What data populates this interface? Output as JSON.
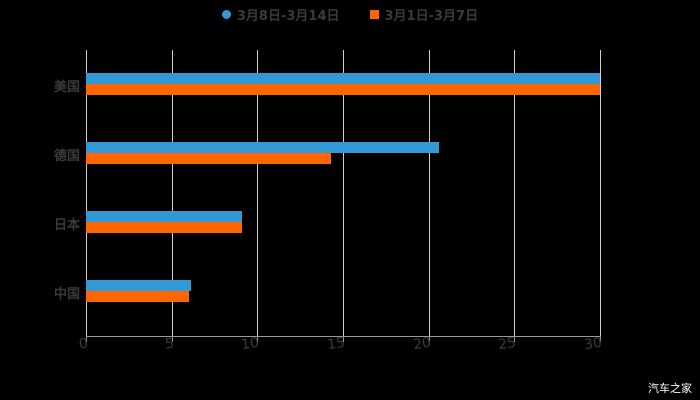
{
  "legend": [
    {
      "label": "3月8日-3月14日",
      "color": "#3399d6",
      "marker": "circle"
    },
    {
      "label": "3月1日-3月7日",
      "color": "#ff6600",
      "marker": "square"
    }
  ],
  "watermark": "汽车之家",
  "chart_data": {
    "type": "bar",
    "orientation": "horizontal",
    "title": "",
    "xlabel": "",
    "ylabel": "",
    "categories": [
      "美国",
      "德国",
      "日本",
      "中国"
    ],
    "series": [
      {
        "name": "3月8日-3月14日",
        "color": "#3399d6",
        "values": [
          30.0,
          20.6,
          9.1,
          6.1
        ]
      },
      {
        "name": "3月1日-3月7日",
        "color": "#ff6600",
        "values": [
          30.0,
          14.3,
          9.1,
          6.0
        ]
      }
    ],
    "xlim": [
      0,
      30
    ],
    "xticks": [
      "0",
      "5",
      "10",
      "15",
      "20",
      "25",
      "30"
    ],
    "grid": true,
    "legend_position": "top"
  }
}
